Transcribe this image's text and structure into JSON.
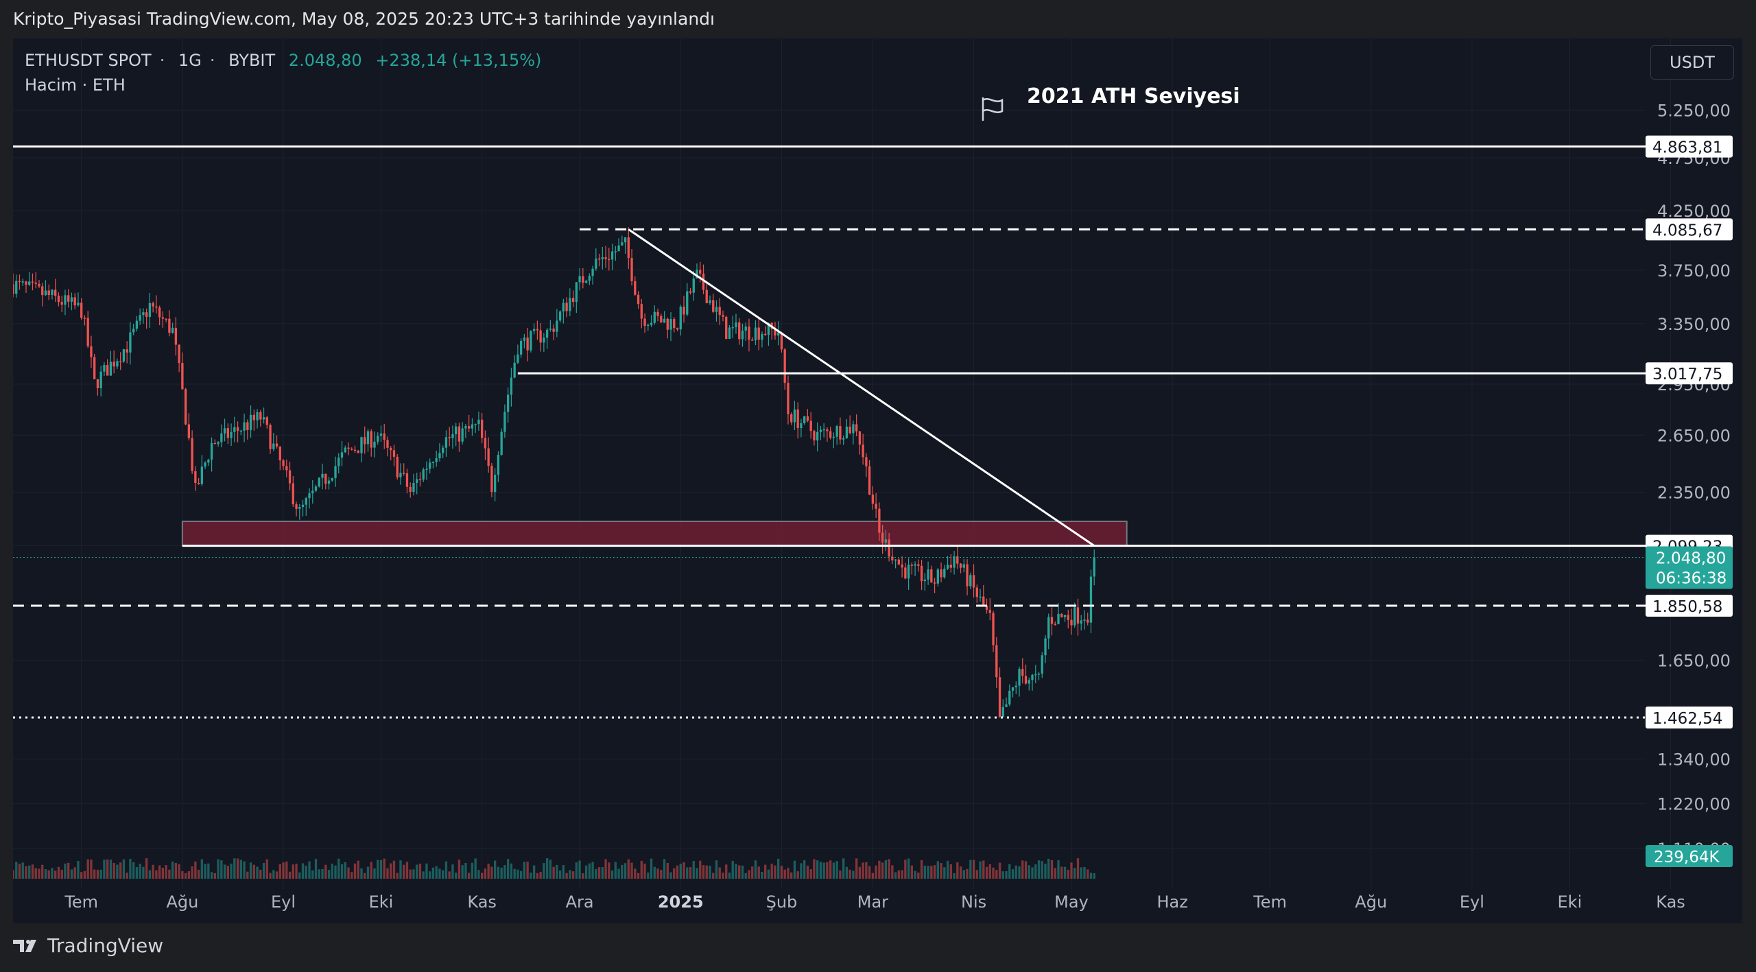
{
  "header": {
    "title": "Kripto_Piyasasi TradingView.com, May 08, 2025 20:23 UTC+3 tarihinde yayınlandı"
  },
  "legend": {
    "symbol": "ETHUSDT SPOT",
    "interval": "1G",
    "exchange": "BYBIT",
    "price": "2.048,80",
    "change": "+238,14 (+13,15%)",
    "volume_label": "Hacim · ETH"
  },
  "currency_button": "USDT",
  "annotation": {
    "text": "2021 ATH Seviyesi",
    "icon": "flag-icon"
  },
  "footer": {
    "brand": "TradingView",
    "logo_icon": "tradingview-logo-icon"
  },
  "colors": {
    "up": "#26a69a",
    "down": "#ef5350",
    "background": "#131722",
    "zone": "#7a1f35",
    "line": "#ffffff"
  },
  "chart_data": {
    "type": "candlestick",
    "symbol": "ETHUSDT",
    "log_scale": true,
    "grid": true,
    "y_ticks": [
      "5.250,00",
      "4.750,00",
      "4.250,00",
      "3.750,00",
      "3.350,00",
      "2.950,00",
      "2.650,00",
      "2.350,00",
      "2.099,23",
      "1.850,58",
      "1.650,00",
      "1.462,54",
      "1.340,00",
      "1.220,00",
      "1.110,00"
    ],
    "y_tick_values": [
      5250,
      4750,
      4250,
      3750,
      3350,
      2950,
      2650,
      2350,
      2099.23,
      1850.58,
      1650,
      1462.54,
      1340,
      1220,
      1110
    ],
    "ylim": [
      1080,
      5600
    ],
    "x_ticks": [
      "Tem",
      "Ağu",
      "Eyl",
      "Eki",
      "Kas",
      "Ara",
      "2025",
      "Şub",
      "Mar",
      "Nis",
      "May",
      "Haz",
      "Tem",
      "Ağu",
      "Eyl",
      "Eki",
      "Kas"
    ],
    "x_tick_dates": [
      "2024-07-01",
      "2024-08-01",
      "2024-09-01",
      "2024-10-01",
      "2024-11-01",
      "2024-12-01",
      "2025-01-01",
      "2025-02-01",
      "2025-03-01",
      "2025-04-01",
      "2025-05-01",
      "2025-06-01",
      "2025-07-01",
      "2025-08-01",
      "2025-09-01",
      "2025-10-01",
      "2025-11-01"
    ],
    "x_range": [
      "2024-06-10",
      "2025-11-23"
    ],
    "price_path": [
      [
        "2024-06-10",
        3640
      ],
      [
        "2024-06-20",
        3560
      ],
      [
        "2024-07-01",
        3450
      ],
      [
        "2024-07-05",
        2950
      ],
      [
        "2024-07-15",
        3200
      ],
      [
        "2024-07-22",
        3480
      ],
      [
        "2024-07-29",
        3300
      ],
      [
        "2024-08-05",
        2350
      ],
      [
        "2024-08-10",
        2600
      ],
      [
        "2024-08-25",
        2750
      ],
      [
        "2024-09-06",
        2250
      ],
      [
        "2024-09-20",
        2550
      ],
      [
        "2024-09-30",
        2650
      ],
      [
        "2024-10-10",
        2350
      ],
      [
        "2024-10-20",
        2620
      ],
      [
        "2024-10-31",
        2700
      ],
      [
        "2024-11-04",
        2380
      ],
      [
        "2024-11-12",
        3200
      ],
      [
        "2024-11-22",
        3300
      ],
      [
        "2024-12-05",
        3800
      ],
      [
        "2024-12-15",
        3950
      ],
      [
        "2024-12-20",
        3400
      ],
      [
        "2024-12-31",
        3350
      ],
      [
        "2025-01-06",
        3700
      ],
      [
        "2025-01-15",
        3300
      ],
      [
        "2025-01-31",
        3300
      ],
      [
        "2025-02-03",
        2780
      ],
      [
        "2025-02-12",
        2650
      ],
      [
        "2025-02-24",
        2700
      ],
      [
        "2025-03-03",
        2150
      ],
      [
        "2025-03-10",
        2000
      ],
      [
        "2025-03-20",
        1950
      ],
      [
        "2025-03-26",
        2050
      ],
      [
        "2025-04-06",
        1800
      ],
      [
        "2025-04-09",
        1450
      ],
      [
        "2025-04-15",
        1600
      ],
      [
        "2025-04-21",
        1580
      ],
      [
        "2025-04-24",
        1800
      ],
      [
        "2025-05-06",
        1820
      ],
      [
        "2025-05-08",
        2048.8
      ]
    ],
    "last_price": {
      "value": "2.048,80",
      "countdown": "06:36:38"
    },
    "volume_last": "239,64K",
    "levels": [
      {
        "value": 4863.81,
        "label": "4.863,81",
        "style": "solid",
        "from": "2024-06-10"
      },
      {
        "value": 4085.67,
        "label": "4.085,67",
        "style": "dashed",
        "from": "2024-12-01"
      },
      {
        "value": 3017.75,
        "label": "3.017,75",
        "style": "solid",
        "from": "2024-11-12"
      },
      {
        "value": 2099.23,
        "label": "2.099,23",
        "style": "solid",
        "from": "2024-08-01"
      },
      {
        "value": 1850.58,
        "label": "1.850,58",
        "style": "dashed",
        "from": "2024-06-10"
      },
      {
        "value": 1462.54,
        "label": "1.462,54",
        "style": "dotted",
        "from": "2024-06-10"
      }
    ],
    "zone": {
      "from": "2024-08-01",
      "to": "2025-05-18",
      "low": 2099.23,
      "high": 2210
    },
    "trendline": {
      "start": [
        "2024-12-16",
        4085.67
      ],
      "end": [
        "2025-05-08",
        2099.23
      ]
    }
  }
}
